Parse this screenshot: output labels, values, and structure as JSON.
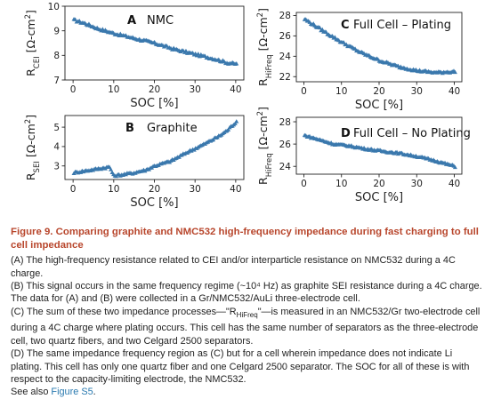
{
  "chart_data": [
    {
      "id": "A",
      "type": "scatter",
      "panel_letter": "A",
      "panel_label": "NMC",
      "ylabel_parts": [
        "R",
        "CEI",
        " [Ω-cm",
        "2",
        "]"
      ],
      "xlabel": "SOC [%]",
      "xlim": [
        -2,
        42
      ],
      "ylim": [
        7,
        10
      ],
      "xticks": [
        0,
        10,
        20,
        30,
        40
      ],
      "yticks": [
        7,
        8,
        9,
        10
      ],
      "grid": false,
      "marker": "triangle",
      "color": "#3a78ad",
      "x_start": 0.2,
      "x_end": 40.2,
      "n_points": 120,
      "y_key": [
        [
          0,
          9.45
        ],
        [
          3,
          9.3
        ],
        [
          6,
          9.1
        ],
        [
          10,
          8.9
        ],
        [
          15,
          8.7
        ],
        [
          20,
          8.5
        ],
        [
          25,
          8.25
        ],
        [
          30,
          8.05
        ],
        [
          35,
          7.85
        ],
        [
          38,
          7.7
        ],
        [
          40.2,
          7.65
        ]
      ]
    },
    {
      "id": "B",
      "type": "scatter",
      "panel_letter": "B",
      "panel_label": "Graphite",
      "ylabel_parts": [
        "R",
        "SEI",
        " [Ω-cm",
        "2",
        "]"
      ],
      "xlabel": "SOC [%]",
      "xlim": [
        -2,
        42
      ],
      "ylim": [
        2.3,
        5.6
      ],
      "xticks": [
        0,
        10,
        20,
        30,
        40
      ],
      "yticks": [
        3,
        4,
        5
      ],
      "grid": false,
      "marker": "triangle",
      "color": "#3a78ad",
      "x_start": 0.2,
      "x_end": 40.2,
      "n_points": 120,
      "y_key": [
        [
          0,
          2.65
        ],
        [
          3,
          2.75
        ],
        [
          6,
          2.85
        ],
        [
          9,
          2.95
        ],
        [
          10,
          2.5
        ],
        [
          12,
          2.55
        ],
        [
          15,
          2.65
        ],
        [
          18,
          2.8
        ],
        [
          20,
          3.0
        ],
        [
          24,
          3.25
        ],
        [
          28,
          3.7
        ],
        [
          32,
          4.1
        ],
        [
          36,
          4.55
        ],
        [
          38,
          4.85
        ],
        [
          40.2,
          5.3
        ]
      ]
    },
    {
      "id": "C",
      "type": "scatter",
      "panel_letter": "C",
      "panel_label": "Full Cell – Plating",
      "ylabel_parts": [
        "R",
        "HiFreq",
        " [Ω-cm",
        "2",
        "]"
      ],
      "xlabel": "SOC [%]",
      "xlim": [
        -2,
        42
      ],
      "ylim": [
        21.5,
        28.3
      ],
      "xticks": [
        0,
        10,
        20,
        30,
        40
      ],
      "yticks": [
        22,
        24,
        26,
        28
      ],
      "grid": false,
      "marker": "triangle",
      "color": "#3a78ad",
      "x_start": 0.2,
      "x_end": 40.2,
      "n_points": 120,
      "y_key": [
        [
          0,
          27.7
        ],
        [
          3,
          27.0
        ],
        [
          6,
          26.3
        ],
        [
          10,
          25.4
        ],
        [
          15,
          24.4
        ],
        [
          20,
          23.6
        ],
        [
          25,
          23.0
        ],
        [
          30,
          22.6
        ],
        [
          35,
          22.4
        ],
        [
          40.2,
          22.5
        ]
      ]
    },
    {
      "id": "D",
      "type": "scatter",
      "panel_letter": "D",
      "panel_label": "Full Cell – No Plating",
      "ylabel_parts": [
        "R",
        "HiFreq",
        " [Ω-cm",
        "2",
        "]"
      ],
      "xlabel": "SOC [%]",
      "xlim": [
        -2,
        42
      ],
      "ylim": [
        23.3,
        28.4
      ],
      "xticks": [
        0,
        10,
        20,
        30,
        40
      ],
      "yticks": [
        24,
        26,
        28
      ],
      "grid": false,
      "marker": "triangle",
      "color": "#3a78ad",
      "x_start": 0.2,
      "x_end": 40.2,
      "n_points": 120,
      "y_key": [
        [
          0,
          26.8
        ],
        [
          4,
          26.4
        ],
        [
          8,
          26.0
        ],
        [
          12,
          25.85
        ],
        [
          16,
          25.6
        ],
        [
          20,
          25.4
        ],
        [
          25,
          25.2
        ],
        [
          30,
          24.9
        ],
        [
          35,
          24.5
        ],
        [
          40.2,
          24.0
        ]
      ]
    }
  ],
  "caption": {
    "title": "Figure 9. Comparing graphite and NMC532 high-frequency impedance during fast charging to full cell impedance",
    "paragraphs": [
      "(A) The high-frequency resistance related to CEI and/or interparticle resistance on NMC532 during a 4C charge.",
      "(B) This signal occurs in the same frequency regime (~10⁴ Hz) as graphite SEI resistance during a 4C charge. The data for (A) and (B) were collected in a Gr/NMC532/AuLi three-electrode cell.",
      "(C) The sum of these two impedance processes—\"R_HiFreq\"—is measured in an NMC532/Gr two-electrode cell during a 4C charge where plating occurs. This cell has the same number of separators as the three-electrode cell, two quartz fibers, and two Celgard 2500 separators.",
      "(D) The same impedance frequency region as (C) but for a cell wherein impedance does not indicate Li plating. This cell has only one quartz fiber and one Celgard 2500 separator. The SOC for all of these is with respect to the capacity-limiting electrode, the NMC532."
    ],
    "see_also_prefix": "See also ",
    "see_also_link": "Figure S5",
    "see_also_suffix": "."
  }
}
